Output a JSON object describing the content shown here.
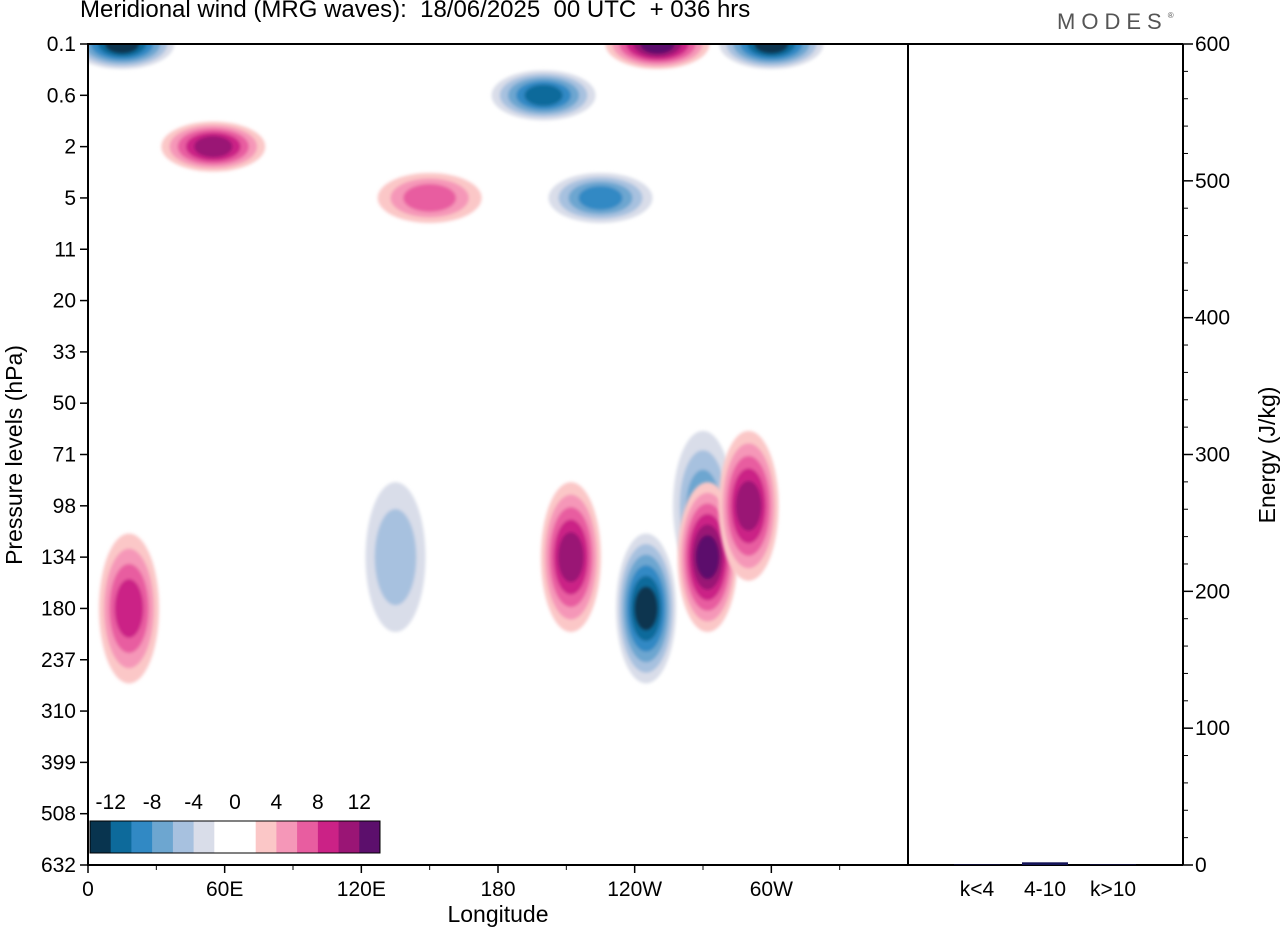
{
  "header": {
    "title": "Meridional wind (MRG waves):  18/06/2025  00 UTC  + 036 hrs",
    "brand": "MODES",
    "brand_mark": "®"
  },
  "chart_data": [
    {
      "type": "heatmap",
      "title": "Meridional wind (MRG waves):  18/06/2025  00 UTC  + 036 hrs",
      "xlabel": "Longitude",
      "ylabel": "Pressure levels (hPa)",
      "x_ticks": [
        "0",
        "60E",
        "120E",
        "180",
        "120W",
        "60W"
      ],
      "y_ticks": [
        "0.1",
        "0.6",
        "2",
        "5",
        "11",
        "20",
        "33",
        "50",
        "71",
        "98",
        "134",
        "180",
        "237",
        "310",
        "399",
        "508",
        "632"
      ],
      "y_scale": "pressure levels, top to bottom",
      "colorbar": {
        "labels": [
          "-12",
          "-8",
          "-4",
          "0",
          "4",
          "8",
          "12"
        ],
        "colors": [
          "#08344f",
          "#0d6a9b",
          "#3189c4",
          "#6da6d0",
          "#a7c1df",
          "#d9dde9",
          "#ffffff",
          "#ffffff",
          "#fbc7c7",
          "#f597b8",
          "#e85da0",
          "#cb2286",
          "#9a1575",
          "#5c0f6c"
        ],
        "placement": "bottom-left"
      },
      "features": [
        {
          "lon": 300,
          "level": "0.1",
          "value": -14
        },
        {
          "lon": 200,
          "level": "0.6",
          "value": -12
        },
        {
          "lon": 225,
          "level": "5",
          "value": -10
        },
        {
          "lon": 245,
          "level": "180",
          "value": -14
        },
        {
          "lon": 270,
          "level": "98",
          "value": -8
        },
        {
          "lon": 135,
          "level": "134",
          "value": -6
        },
        {
          "lon": 212,
          "level": "134",
          "value": 10
        },
        {
          "lon": 272,
          "level": "134",
          "value": 12
        },
        {
          "lon": 18,
          "level": "180",
          "value": 8
        },
        {
          "lon": 290,
          "level": "98",
          "value": 10
        },
        {
          "lon": 55,
          "level": "2",
          "value": 10
        },
        {
          "lon": 150,
          "level": "5",
          "value": 6
        },
        {
          "lon": 15,
          "level": "0.1",
          "value": -14
        },
        {
          "lon": 250,
          "level": "0.1",
          "value": 12
        }
      ]
    },
    {
      "type": "bar",
      "categories": [
        "k<4",
        "4-10",
        "k>10"
      ],
      "values": [
        0.4,
        2,
        0.4
      ],
      "ylabel": "Energy (J/kg)",
      "ylim": [
        0,
        600
      ],
      "y_ticks": [
        "0",
        "100",
        "200",
        "300",
        "400",
        "500",
        "600"
      ],
      "color": "#141457"
    }
  ]
}
